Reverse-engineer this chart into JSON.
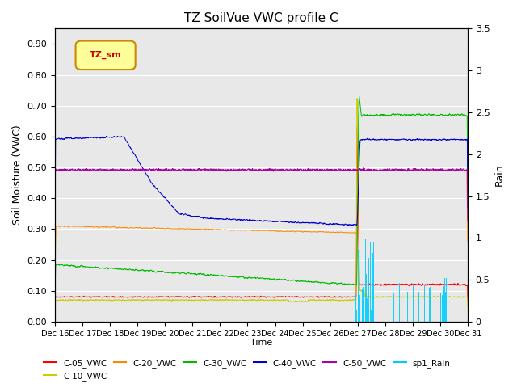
{
  "title": "TZ SoilVue VWC profile C",
  "xlabel": "Time",
  "ylabel_left": "Soil Moisture (VWC)",
  "ylabel_right": "Rain",
  "ylim_left": [
    0.0,
    0.95
  ],
  "ylim_right": [
    0.0,
    3.5
  ],
  "background_color": "#e8e8e8",
  "figure_background": "#ffffff",
  "legend_box_label": "TZ_sm",
  "legend_box_color": "#ffff99",
  "legend_box_border": "#cc8800",
  "series_colors": {
    "C-05_VWC": "#ff0000",
    "C-10_VWC": "#cccc00",
    "C-20_VWC": "#ff8800",
    "C-30_VWC": "#00bb00",
    "C-40_VWC": "#0000cc",
    "C-50_VWC": "#aa00aa",
    "sp1_Rain": "#00ccff"
  },
  "xtick_labels": [
    "Dec 16",
    "Dec 17",
    "Dec 18",
    "Dec 19",
    "Dec 20",
    "Dec 21",
    "Dec 22",
    "Dec 23",
    "Dec 24",
    "Dec 25",
    "Dec 26",
    "Dec 27",
    "Dec 28",
    "Dec 29",
    "Dec 30",
    "Dec 31"
  ],
  "yticks_left": [
    0.0,
    0.1,
    0.2,
    0.3,
    0.4,
    0.5,
    0.6,
    0.7,
    0.8,
    0.9
  ],
  "yticks_right": [
    0.0,
    0.5,
    1.0,
    1.5,
    2.0,
    2.5,
    3.0,
    3.5
  ]
}
